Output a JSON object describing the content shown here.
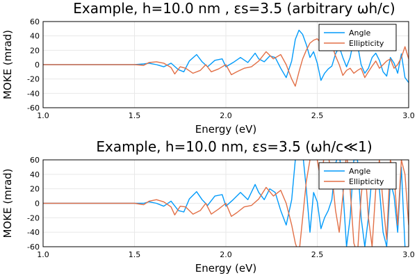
{
  "chart_data": [
    {
      "type": "line",
      "title": "Example, h=10.0 nm , εs=3.5 (arbitrary ωh/c)",
      "xlabel": "Energy (eV)",
      "ylabel": "MOKE (mrad)",
      "xlim": [
        1.0,
        3.0
      ],
      "ylim": [
        -60,
        60
      ],
      "xticks": [
        1.0,
        1.5,
        2.0,
        2.5,
        3.0
      ],
      "xtick_labels": [
        "1.0",
        "1.5",
        "2.0",
        "2.5",
        "3.0"
      ],
      "yticks": [
        -60,
        -40,
        -20,
        0,
        20,
        40,
        60
      ],
      "ytick_labels": [
        "-60",
        "-40",
        "-20",
        "0",
        "20",
        "40",
        "60"
      ],
      "grid": true,
      "legend": "top-right",
      "series": [
        {
          "name": "Angle",
          "color": "#009AFA",
          "x": [
            1.0,
            1.5,
            1.55,
            1.58,
            1.62,
            1.66,
            1.7,
            1.74,
            1.77,
            1.8,
            1.84,
            1.87,
            1.9,
            1.94,
            1.98,
            2.0,
            2.04,
            2.08,
            2.12,
            2.16,
            2.18,
            2.21,
            2.24,
            2.27,
            2.3,
            2.33,
            2.36,
            2.38,
            2.4,
            2.42,
            2.44,
            2.46,
            2.48,
            2.5,
            2.52,
            2.54,
            2.56,
            2.58,
            2.6,
            2.62,
            2.64,
            2.66,
            2.68,
            2.7,
            2.72,
            2.74,
            2.76,
            2.78,
            2.8,
            2.82,
            2.84,
            2.86,
            2.88,
            2.9,
            2.92,
            2.94,
            2.96,
            2.98,
            3.0
          ],
          "y": [
            0,
            0,
            1,
            2,
            0,
            -3,
            2,
            -7,
            -10,
            5,
            14,
            4,
            -3,
            6,
            8,
            -3,
            3,
            10,
            3,
            16,
            8,
            4,
            12,
            10,
            -5,
            -18,
            5,
            35,
            48,
            42,
            28,
            10,
            18,
            2,
            -22,
            -12,
            -6,
            -2,
            15,
            25,
            10,
            -3,
            10,
            35,
            28,
            0,
            -12,
            -5,
            10,
            16,
            6,
            -10,
            -16,
            10,
            2,
            -12,
            15,
            -18,
            -25
          ]
        },
        {
          "name": "Ellipticity",
          "color": "#E26F46",
          "x": [
            1.0,
            1.5,
            1.55,
            1.58,
            1.62,
            1.66,
            1.7,
            1.72,
            1.75,
            1.78,
            1.82,
            1.86,
            1.89,
            1.92,
            1.96,
            2.0,
            2.03,
            2.06,
            2.1,
            2.14,
            2.18,
            2.22,
            2.26,
            2.3,
            2.33,
            2.36,
            2.38,
            2.4,
            2.42,
            2.44,
            2.46,
            2.48,
            2.5,
            2.52,
            2.54,
            2.56,
            2.58,
            2.6,
            2.62,
            2.64,
            2.66,
            2.68,
            2.7,
            2.72,
            2.74,
            2.76,
            2.78,
            2.8,
            2.82,
            2.84,
            2.86,
            2.88,
            2.9,
            2.92,
            2.94,
            2.96,
            2.98,
            3.0
          ],
          "y": [
            0,
            0,
            -1,
            3,
            4,
            2,
            -4,
            -13,
            -3,
            -5,
            -12,
            -8,
            0,
            -10,
            -6,
            0,
            -14,
            -10,
            -5,
            -3,
            5,
            18,
            8,
            14,
            0,
            -20,
            -30,
            -10,
            8,
            20,
            30,
            34,
            36,
            30,
            20,
            32,
            28,
            12,
            0,
            -15,
            -8,
            -5,
            -12,
            -8,
            -5,
            -18,
            -10,
            -2,
            5,
            -5,
            0,
            5,
            8,
            -5,
            0,
            10,
            25,
            8
          ]
        }
      ]
    },
    {
      "type": "line",
      "title": "Example, h=10.0 nm, εs=3.5 (ωh/c≪1)",
      "xlabel": "Energy (eV)",
      "ylabel": "MOKE (mrad)",
      "xlim": [
        1.0,
        3.0
      ],
      "ylim": [
        -60,
        60
      ],
      "xticks": [
        1.0,
        1.5,
        2.0,
        2.5,
        3.0
      ],
      "xtick_labels": [
        "1.0",
        "1.5",
        "2.0",
        "2.5",
        "3.0"
      ],
      "yticks": [
        -60,
        -40,
        -20,
        0,
        20,
        40,
        60
      ],
      "ytick_labels": [
        "-60",
        "-40",
        "-20",
        "0",
        "20",
        "40",
        "60"
      ],
      "grid": true,
      "legend": "top-right",
      "series": [
        {
          "name": "Angle",
          "color": "#009AFA",
          "x": [
            1.0,
            1.5,
            1.55,
            1.58,
            1.62,
            1.66,
            1.7,
            1.74,
            1.77,
            1.8,
            1.84,
            1.87,
            1.9,
            1.94,
            1.98,
            2.0,
            2.04,
            2.08,
            2.12,
            2.16,
            2.18,
            2.21,
            2.24,
            2.27,
            2.3,
            2.33,
            2.36,
            2.38,
            2.4,
            2.42,
            2.44,
            2.46,
            2.48,
            2.5,
            2.52,
            2.54,
            2.56,
            2.58,
            2.6,
            2.62,
            2.64,
            2.66,
            2.68,
            2.7,
            2.72,
            2.74,
            2.76,
            2.78,
            2.8,
            2.82,
            2.84,
            2.86,
            2.88,
            2.9,
            2.92,
            2.94,
            2.96,
            2.98,
            3.0
          ],
          "y": [
            0,
            0,
            0,
            2,
            0,
            -4,
            3,
            -10,
            -12,
            6,
            16,
            5,
            -3,
            10,
            12,
            -4,
            5,
            15,
            5,
            26,
            15,
            5,
            20,
            15,
            -10,
            -30,
            5,
            60,
            75,
            70,
            20,
            -40,
            15,
            2,
            -35,
            -20,
            -10,
            5,
            55,
            70,
            20,
            -60,
            -20,
            60,
            60,
            -20,
            -60,
            -20,
            40,
            55,
            20,
            -40,
            -60,
            30,
            10,
            -40,
            50,
            -60,
            -70
          ]
        },
        {
          "name": "Ellipticity",
          "color": "#E26F46",
          "x": [
            1.0,
            1.5,
            1.55,
            1.58,
            1.62,
            1.66,
            1.7,
            1.72,
            1.75,
            1.78,
            1.82,
            1.86,
            1.89,
            1.92,
            1.96,
            2.0,
            2.03,
            2.06,
            2.1,
            2.14,
            2.18,
            2.22,
            2.26,
            2.3,
            2.33,
            2.36,
            2.38,
            2.4,
            2.42,
            2.44,
            2.46,
            2.48,
            2.5,
            2.52,
            2.54,
            2.56,
            2.58,
            2.6,
            2.62,
            2.64,
            2.66,
            2.68,
            2.7,
            2.72,
            2.74,
            2.76,
            2.78,
            2.8,
            2.82,
            2.84,
            2.86,
            2.88,
            2.9,
            2.92,
            2.94,
            2.96,
            2.98,
            3.0
          ],
          "y": [
            0,
            0,
            -2,
            3,
            5,
            2,
            -5,
            -16,
            -4,
            -5,
            -15,
            -10,
            0,
            -15,
            -8,
            0,
            -18,
            -13,
            -5,
            -3,
            6,
            22,
            10,
            18,
            0,
            -30,
            -55,
            -70,
            -20,
            30,
            60,
            70,
            60,
            30,
            70,
            65,
            40,
            -10,
            -40,
            10,
            70,
            20,
            -55,
            -70,
            10,
            55,
            -20,
            -60,
            20,
            60,
            0,
            -50,
            60,
            40,
            -30,
            60,
            40,
            -30
          ]
        }
      ]
    }
  ]
}
